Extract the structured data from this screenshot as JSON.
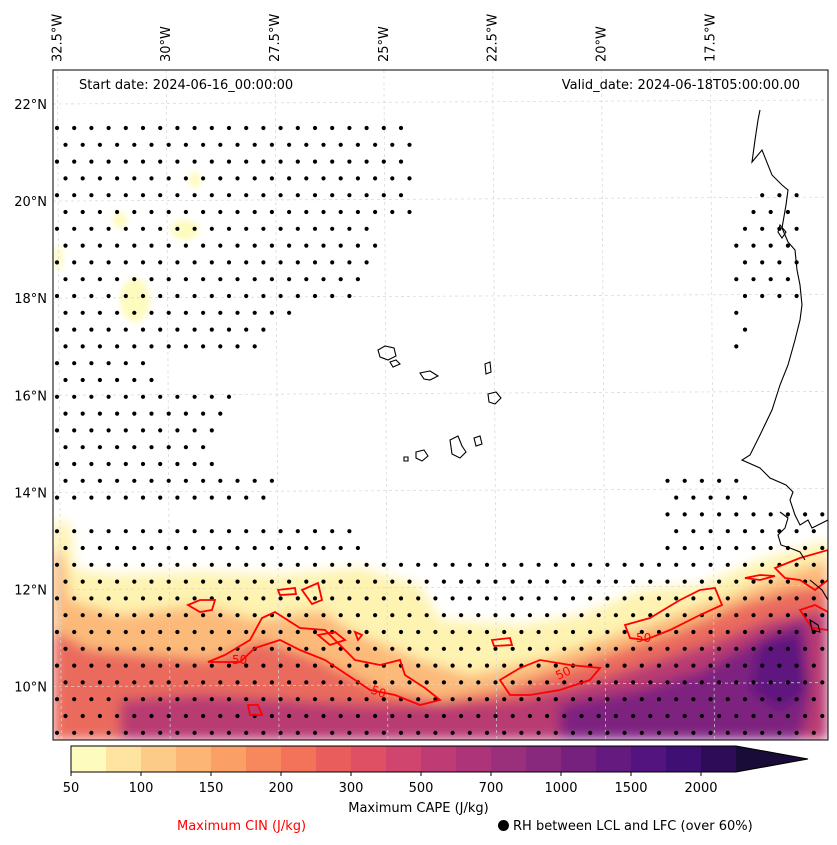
{
  "chart_data": {
    "type": "heatmap",
    "title": "",
    "annotations": {
      "start_date": "Start date: 2024-06-16_00:00:00",
      "valid_date": "Valid_date: 2024-06-18T05:00:00.00"
    },
    "lon_ticks": [
      "32.5°W",
      "30°W",
      "27.5°W",
      "25°W",
      "22.5°W",
      "20°W",
      "17.5°W"
    ],
    "lon_values": [
      -32.5,
      -30,
      -27.5,
      -25,
      -22.5,
      -20,
      -17.5
    ],
    "lat_ticks": [
      "22°N",
      "20°N",
      "18°N",
      "16°N",
      "14°N",
      "12°N",
      "10°N"
    ],
    "lat_values": [
      22,
      20,
      18,
      16,
      14,
      12,
      10
    ],
    "xlim": [
      -32.6,
      -14.8
    ],
    "ylim": [
      8.9,
      22.7
    ],
    "colorbar": {
      "label": "Maximum CAPE (J/kg)",
      "ticks": [
        "50",
        "100",
        "150",
        "200",
        "300",
        "500",
        "700",
        "1000",
        "1500",
        "2000"
      ],
      "levels": [
        50,
        75,
        100,
        125,
        150,
        175,
        200,
        250,
        300,
        400,
        500,
        600,
        700,
        800,
        1000,
        1250,
        1500,
        1750,
        2000
      ],
      "colors": [
        "#fefbbf",
        "#fee4a0",
        "#fdcb88",
        "#fcb575",
        "#fa9f66",
        "#f7875d",
        "#f2735a",
        "#e95e5d",
        "#df5065",
        "#d0456d",
        "#bf3b73",
        "#ad3478",
        "#9a2f7b",
        "#88297d",
        "#77217e",
        "#651a80",
        "#531480",
        "#400f74",
        "#2e0c58",
        "#1a0c38"
      ],
      "extend": "max"
    },
    "contour_label": "50",
    "legend": {
      "cin": "Maximum CIN (J/kg)",
      "rh": "RH between LCL and LFC (over 60%)"
    },
    "colors": {
      "cin_contour": "#ff0000",
      "coast": "#000000",
      "grid": "#cccccc"
    }
  }
}
